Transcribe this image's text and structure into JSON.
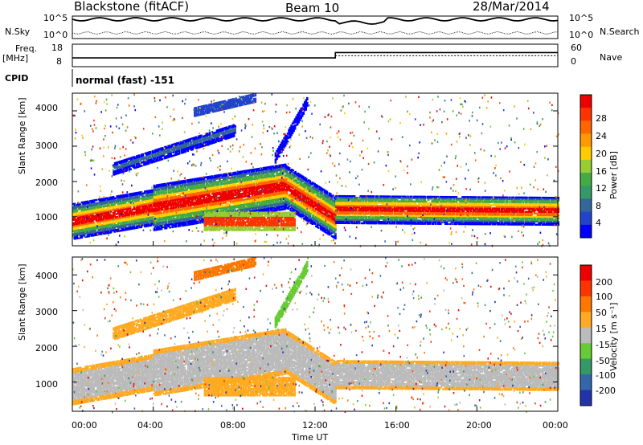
{
  "header": {
    "station": "Blackstone (fitACF)",
    "beam": "Beam 10",
    "date": "28/Mar/2014"
  },
  "status_panels": {
    "nsky_label": "N.Sky",
    "nsearch_label": "N.Search",
    "freq_label_line1": "Freq.",
    "freq_label_line2": "[MHz]",
    "nave_label": "Nave",
    "cpid_label": "CPID",
    "cpid_value": "normal (fast) -151",
    "noise_ticks": [
      "10^5",
      "10^0"
    ],
    "freq_ticks": [
      "18",
      "8"
    ],
    "nave_ticks": [
      "60",
      "0"
    ],
    "frequency_mhz": [
      {
        "time_h": 0,
        "value": 10.6
      },
      {
        "time_h": 13.0,
        "value": 10.6
      },
      {
        "time_h": 13.0,
        "value": 14.1
      },
      {
        "time_h": 24,
        "value": 14.1
      }
    ]
  },
  "chart_data": [
    {
      "type": "heatmap",
      "name": "power",
      "ylabel": "Slant Range [km]",
      "xlabel": "",
      "ylim": [
        180,
        4500
      ],
      "xlim": [
        0,
        24
      ],
      "yticks": [
        "4000",
        "3000",
        "2000",
        "1000"
      ],
      "ytick_values": [
        4000,
        3000,
        2000,
        1000
      ],
      "colorbar": {
        "label": "Power [dB]",
        "ticks": [
          "28",
          "24",
          "20",
          "16",
          "12",
          "8",
          "4"
        ],
        "colors": [
          "#0000ff",
          "#2244cc",
          "#336699",
          "#339966",
          "#44aa44",
          "#99cc33",
          "#ffcc00",
          "#ff9900",
          "#ff6600",
          "#ff3300",
          "#ee0000"
        ]
      },
      "echo_bands": [
        {
          "t0": 0.0,
          "t1": 13.0,
          "r0": 900,
          "r1": 1000,
          "level": "high",
          "slope": 80
        },
        {
          "t0": 13.0,
          "t1": 24.0,
          "r0": 1050,
          "r1": 1250,
          "level": "high",
          "slope": 0
        },
        {
          "t0": 6.5,
          "t1": 11.0,
          "r0": 700,
          "r1": 1000,
          "level": "high",
          "slope": 0
        }
      ]
    },
    {
      "type": "heatmap",
      "name": "velocity",
      "ylabel": "Slant Range [km]",
      "xlabel": "Time UT",
      "ylim": [
        180,
        4500
      ],
      "xlim": [
        0,
        24
      ],
      "yticks": [
        "4000",
        "3000",
        "2000",
        "1000"
      ],
      "ytick_values": [
        4000,
        3000,
        2000,
        1000
      ],
      "xticks": [
        "00:00",
        "04:00",
        "08:00",
        "12:00",
        "16:00",
        "20:00",
        "00:00"
      ],
      "xtick_values": [
        0,
        4,
        8,
        12,
        16,
        20,
        24
      ],
      "colorbar": {
        "label": "Velocity [m s⁻¹]",
        "ticks": [
          "200",
          "100",
          "50",
          "15",
          "-15",
          "-50",
          "-100",
          "-200"
        ],
        "colors": [
          "#2233aa",
          "#3366aa",
          "#339966",
          "#66cc33",
          "#bbbbbb",
          "#ffaa22",
          "#ff7700",
          "#ff3300",
          "#ee0000"
        ]
      }
    }
  ]
}
